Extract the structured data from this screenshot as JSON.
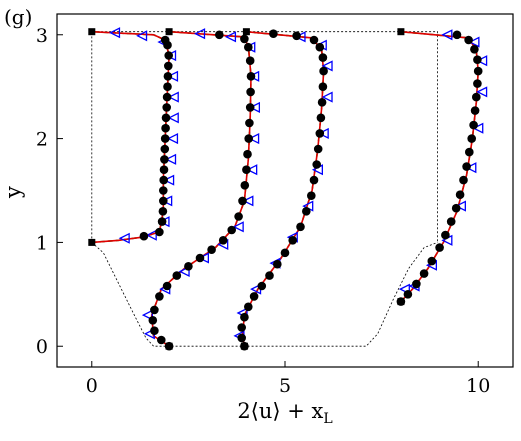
{
  "chart_data": {
    "type": "line",
    "panel_label": "(g)",
    "xlabel": "2⟨u⟩ + x_L",
    "xlabel_parts": {
      "main": "2⟨u⟩ + x",
      "sub": "L"
    },
    "ylabel": "y",
    "xlim": [
      -0.9,
      10.9
    ],
    "ylim": [
      -0.2,
      3.2
    ],
    "xticks": [
      0,
      5,
      10
    ],
    "yticks": [
      0,
      1,
      2,
      3
    ],
    "grid": false,
    "colors": {
      "solid_line": "#e00000",
      "dashed_line": "#008000",
      "circle": "#000000",
      "triangle": "#0000ff",
      "boundary": "#000000"
    },
    "boundary": {
      "domain_box": [
        [
          0,
          1
        ],
        [
          0,
          3.03
        ],
        [
          8.95,
          3.03
        ],
        [
          8.95,
          1
        ]
      ],
      "bottom_wall": [
        [
          0,
          1
        ],
        [
          0.3,
          0.9
        ],
        [
          0.7,
          0.6
        ],
        [
          1.1,
          0.3
        ],
        [
          1.4,
          0.08
        ],
        [
          1.6,
          0.0
        ],
        [
          7.1,
          0.0
        ],
        [
          7.4,
          0.12
        ],
        [
          7.8,
          0.45
        ],
        [
          8.2,
          0.75
        ],
        [
          8.6,
          0.95
        ],
        [
          8.95,
          1.0
        ]
      ]
    },
    "profiles": [
      {
        "base_x": 0,
        "line": [
          [
            0.0,
            1.0
          ],
          [
            0.7,
            1.02
          ],
          [
            1.3,
            1.05
          ],
          [
            1.75,
            1.1
          ],
          [
            1.85,
            1.3
          ],
          [
            1.85,
            1.6
          ],
          [
            1.9,
            2.0
          ],
          [
            1.95,
            2.4
          ],
          [
            2.0,
            2.8
          ],
          [
            1.9,
            2.95
          ],
          [
            1.6,
            3.0
          ],
          [
            0.0,
            3.03
          ]
        ],
        "circles": [
          [
            1.35,
            1.06
          ],
          [
            1.75,
            1.1
          ],
          [
            1.82,
            1.2
          ],
          [
            1.84,
            1.3
          ],
          [
            1.85,
            1.4
          ],
          [
            1.85,
            1.5
          ],
          [
            1.86,
            1.6
          ],
          [
            1.87,
            1.7
          ],
          [
            1.88,
            1.8
          ],
          [
            1.89,
            1.9
          ],
          [
            1.9,
            2.0
          ],
          [
            1.91,
            2.1
          ],
          [
            1.92,
            2.2
          ],
          [
            1.94,
            2.3
          ],
          [
            1.95,
            2.4
          ],
          [
            1.96,
            2.5
          ],
          [
            1.97,
            2.6
          ],
          [
            1.98,
            2.7
          ],
          [
            1.99,
            2.8
          ],
          [
            1.96,
            2.9
          ],
          [
            1.9,
            2.95
          ]
        ],
        "triangles": [
          [
            0.85,
            1.04
          ],
          [
            1.55,
            1.07
          ],
          [
            1.88,
            1.2
          ],
          [
            1.95,
            1.4
          ],
          [
            2.0,
            1.6
          ],
          [
            2.05,
            1.8
          ],
          [
            2.1,
            2.0
          ],
          [
            2.12,
            2.2
          ],
          [
            2.12,
            2.4
          ],
          [
            2.1,
            2.6
          ],
          [
            2.05,
            2.8
          ],
          [
            1.85,
            2.93
          ],
          [
            1.3,
            2.99
          ],
          [
            0.6,
            3.02
          ]
        ]
      },
      {
        "base_x": 2,
        "line": [
          [
            2.0,
            0.0
          ],
          [
            1.6,
            0.1
          ],
          [
            1.55,
            0.3
          ],
          [
            1.8,
            0.55
          ],
          [
            2.4,
            0.75
          ],
          [
            3.2,
            0.95
          ],
          [
            3.7,
            1.15
          ],
          [
            3.95,
            1.4
          ],
          [
            4.05,
            1.8
          ],
          [
            4.1,
            2.2
          ],
          [
            4.12,
            2.6
          ],
          [
            4.05,
            2.9
          ],
          [
            3.9,
            2.98
          ],
          [
            2.0,
            3.03
          ]
        ],
        "circles": [
          [
            2.0,
            0.0
          ],
          [
            1.8,
            0.06
          ],
          [
            1.62,
            0.15
          ],
          [
            1.58,
            0.25
          ],
          [
            1.62,
            0.35
          ],
          [
            1.75,
            0.48
          ],
          [
            1.95,
            0.58
          ],
          [
            2.2,
            0.68
          ],
          [
            2.5,
            0.77
          ],
          [
            2.8,
            0.85
          ],
          [
            3.1,
            0.93
          ],
          [
            3.4,
            1.02
          ],
          [
            3.62,
            1.12
          ],
          [
            3.8,
            1.25
          ],
          [
            3.9,
            1.4
          ],
          [
            3.96,
            1.55
          ],
          [
            4.0,
            1.7
          ],
          [
            4.03,
            1.85
          ],
          [
            4.06,
            2.0
          ],
          [
            4.08,
            2.15
          ],
          [
            4.1,
            2.3
          ],
          [
            4.11,
            2.45
          ],
          [
            4.12,
            2.6
          ],
          [
            4.1,
            2.75
          ],
          [
            4.05,
            2.88
          ],
          [
            3.95,
            2.96
          ],
          [
            3.3,
            3.0
          ]
        ],
        "triangles": [
          [
            1.5,
            0.12
          ],
          [
            1.45,
            0.3
          ],
          [
            1.9,
            0.55
          ],
          [
            2.4,
            0.72
          ],
          [
            2.9,
            0.85
          ],
          [
            3.4,
            0.98
          ],
          [
            3.8,
            1.15
          ],
          [
            4.05,
            1.4
          ],
          [
            4.15,
            1.7
          ],
          [
            4.2,
            2.0
          ],
          [
            4.22,
            2.3
          ],
          [
            4.2,
            2.6
          ],
          [
            4.1,
            2.88
          ],
          [
            3.6,
            2.98
          ],
          [
            2.8,
            3.01
          ]
        ]
      },
      {
        "base_x": 4,
        "line": [
          [
            3.95,
            0.0
          ],
          [
            3.9,
            0.1
          ],
          [
            3.95,
            0.3
          ],
          [
            4.3,
            0.55
          ],
          [
            4.9,
            0.85
          ],
          [
            5.4,
            1.15
          ],
          [
            5.7,
            1.5
          ],
          [
            5.85,
            1.9
          ],
          [
            5.95,
            2.3
          ],
          [
            6.0,
            2.65
          ],
          [
            5.95,
            2.85
          ],
          [
            5.7,
            2.97
          ],
          [
            4.0,
            3.03
          ]
        ],
        "circles": [
          [
            3.95,
            0.0
          ],
          [
            3.88,
            0.08
          ],
          [
            3.88,
            0.18
          ],
          [
            3.95,
            0.28
          ],
          [
            4.05,
            0.38
          ],
          [
            4.2,
            0.48
          ],
          [
            4.4,
            0.58
          ],
          [
            4.6,
            0.68
          ],
          [
            4.8,
            0.79
          ],
          [
            5.0,
            0.9
          ],
          [
            5.2,
            1.02
          ],
          [
            5.4,
            1.15
          ],
          [
            5.55,
            1.3
          ],
          [
            5.68,
            1.45
          ],
          [
            5.75,
            1.6
          ],
          [
            5.82,
            1.75
          ],
          [
            5.86,
            1.9
          ],
          [
            5.9,
            2.05
          ],
          [
            5.93,
            2.2
          ],
          [
            5.96,
            2.35
          ],
          [
            5.98,
            2.5
          ],
          [
            6.0,
            2.65
          ],
          [
            5.98,
            2.78
          ],
          [
            5.9,
            2.88
          ],
          [
            5.75,
            2.95
          ],
          [
            5.3,
            2.99
          ],
          [
            4.7,
            3.01
          ]
        ],
        "triangles": [
          [
            3.82,
            0.1
          ],
          [
            3.9,
            0.32
          ],
          [
            4.25,
            0.55
          ],
          [
            4.75,
            0.8
          ],
          [
            5.2,
            1.05
          ],
          [
            5.6,
            1.35
          ],
          [
            5.85,
            1.7
          ],
          [
            6.0,
            2.05
          ],
          [
            6.1,
            2.4
          ],
          [
            6.1,
            2.7
          ],
          [
            5.95,
            2.9
          ],
          [
            5.4,
            2.98
          ]
        ]
      },
      {
        "base_x": 8,
        "line": [
          [
            8.0,
            0.43
          ],
          [
            8.3,
            0.55
          ],
          [
            8.7,
            0.75
          ],
          [
            9.1,
            1.0
          ],
          [
            9.45,
            1.3
          ],
          [
            9.7,
            1.65
          ],
          [
            9.85,
            2.0
          ],
          [
            9.95,
            2.35
          ],
          [
            10.0,
            2.65
          ],
          [
            9.95,
            2.85
          ],
          [
            9.75,
            2.97
          ],
          [
            8.0,
            3.03
          ]
        ],
        "circles": [
          [
            8.0,
            0.43
          ],
          [
            8.18,
            0.5
          ],
          [
            8.4,
            0.6
          ],
          [
            8.6,
            0.7
          ],
          [
            8.8,
            0.82
          ],
          [
            9.0,
            0.95
          ],
          [
            9.15,
            1.07
          ],
          [
            9.3,
            1.2
          ],
          [
            9.43,
            1.33
          ],
          [
            9.53,
            1.46
          ],
          [
            9.62,
            1.6
          ],
          [
            9.7,
            1.73
          ],
          [
            9.77,
            1.87
          ],
          [
            9.83,
            2.0
          ],
          [
            9.88,
            2.13
          ],
          [
            9.92,
            2.27
          ],
          [
            9.95,
            2.4
          ],
          [
            9.98,
            2.53
          ],
          [
            10.0,
            2.65
          ],
          [
            9.98,
            2.76
          ],
          [
            9.9,
            2.86
          ],
          [
            9.75,
            2.95
          ],
          [
            9.45,
            3.0
          ]
        ],
        "triangles": [
          [
            8.1,
            0.55
          ],
          [
            8.35,
            0.58
          ],
          [
            8.8,
            0.78
          ],
          [
            9.2,
            1.02
          ],
          [
            9.55,
            1.35
          ],
          [
            9.82,
            1.72
          ],
          [
            10.0,
            2.1
          ],
          [
            10.1,
            2.45
          ],
          [
            10.1,
            2.75
          ],
          [
            9.9,
            2.93
          ],
          [
            9.2,
            3.0
          ]
        ]
      }
    ]
  }
}
